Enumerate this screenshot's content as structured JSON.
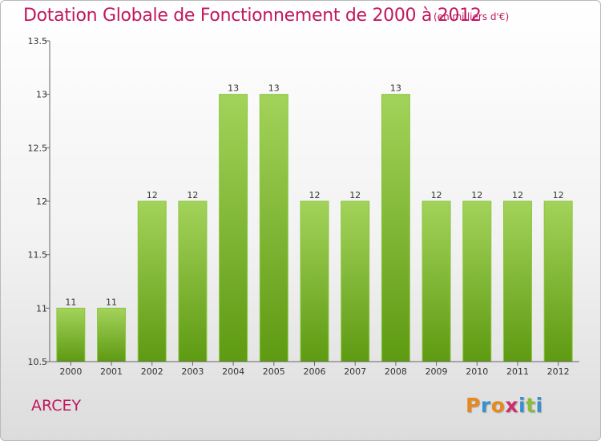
{
  "header": {
    "title": "Dotation Globale de Fonctionnement de 2000 à 2012",
    "subtitle": "(en milliers d'€)"
  },
  "commune": "ARCEY",
  "logo": {
    "letters": [
      "P",
      "r",
      "o",
      "x",
      "i",
      "t",
      "i"
    ],
    "colors": [
      "#e58a1f",
      "#3a8fd1",
      "#e58a1f",
      "#cc2f6b",
      "#3a8fd1",
      "#8bbd3d",
      "#3a8fd1"
    ]
  },
  "chart_data": {
    "type": "bar",
    "categories": [
      "2000",
      "2001",
      "2002",
      "2003",
      "2004",
      "2005",
      "2006",
      "2007",
      "2008",
      "2009",
      "2010",
      "2011",
      "2012"
    ],
    "values": [
      11,
      11,
      12,
      12,
      13,
      13,
      12,
      12,
      13,
      12,
      12,
      12,
      12
    ],
    "data_labels": [
      "11",
      "11",
      "12",
      "12",
      "13",
      "13",
      "12",
      "12",
      "13",
      "12",
      "12",
      "12",
      "12"
    ],
    "ylim": [
      10.5,
      13.5
    ],
    "yticks": [
      10.5,
      11,
      11.5,
      12,
      12.5,
      13,
      13.5
    ],
    "ytick_labels": [
      "10.5",
      "11",
      "11.5",
      "12",
      "12.5",
      "13",
      "13.5"
    ],
    "grid": false,
    "bar_color": "#7dbb2c"
  }
}
